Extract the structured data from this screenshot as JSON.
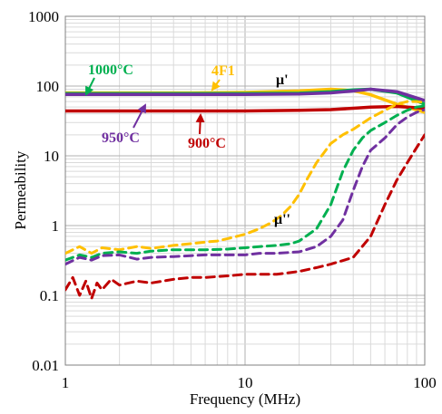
{
  "chart_data": {
    "type": "line",
    "xlabel": "Frequency (MHz)",
    "ylabel": "Permeability",
    "x_scale": "log",
    "y_scale": "log",
    "xlim": [
      1,
      100
    ],
    "ylim": [
      0.01,
      1000
    ],
    "grid": true,
    "x_ticks": [
      "1",
      "10",
      "100"
    ],
    "y_ticks": [
      "0.01",
      "0.1",
      "1",
      "10",
      "100",
      "1000"
    ],
    "colors": {
      "4F1": "#ffc000",
      "1000C": "#00b050",
      "950C": "#7030a0",
      "900C": "#c00000"
    },
    "series": [
      {
        "name": "4F1",
        "part": "μ'",
        "color_key": "4F1",
        "dash": false,
        "x": [
          1,
          5,
          10,
          20,
          30,
          40,
          50,
          70,
          100
        ],
        "y": [
          80,
          80,
          81,
          85,
          90,
          86,
          75,
          55,
          42
        ]
      },
      {
        "name": "1000°C",
        "part": "μ'",
        "color_key": "1000C",
        "dash": false,
        "x": [
          1,
          5,
          10,
          20,
          30,
          40,
          50,
          70,
          100
        ],
        "y": [
          78,
          78,
          78,
          79,
          83,
          88,
          90,
          80,
          55
        ]
      },
      {
        "name": "950°C",
        "part": "μ'",
        "color_key": "950C",
        "dash": false,
        "x": [
          1,
          5,
          10,
          20,
          30,
          40,
          50,
          70,
          100
        ],
        "y": [
          76,
          76,
          76,
          77,
          80,
          85,
          90,
          83,
          62
        ]
      },
      {
        "name": "900°C",
        "part": "μ'",
        "color_key": "900C",
        "dash": false,
        "x": [
          1,
          5,
          10,
          20,
          30,
          40,
          50,
          70,
          100
        ],
        "y": [
          44,
          44,
          44,
          45,
          46,
          48,
          50,
          51,
          48
        ]
      },
      {
        "name": "4F1",
        "part": "μ''",
        "color_key": "4F1",
        "dash": true,
        "x": [
          1,
          1.2,
          1.4,
          1.6,
          2,
          2.5,
          3,
          4,
          5,
          6,
          7,
          8,
          10,
          12,
          14,
          16,
          18,
          20,
          22,
          25,
          30,
          35,
          40,
          50,
          60,
          70,
          80,
          90,
          100
        ],
        "y": [
          0.4,
          0.5,
          0.4,
          0.48,
          0.45,
          0.5,
          0.47,
          0.52,
          0.55,
          0.58,
          0.6,
          0.65,
          0.75,
          0.9,
          1.1,
          1.4,
          1.9,
          2.8,
          4.5,
          8,
          15,
          20,
          24,
          35,
          45,
          55,
          60,
          60,
          58
        ]
      },
      {
        "name": "1000°C",
        "part": "μ''",
        "color_key": "1000C",
        "dash": true,
        "x": [
          1,
          1.2,
          1.4,
          1.6,
          2,
          2.5,
          3,
          4,
          5,
          6,
          8,
          10,
          12,
          15,
          18,
          20,
          25,
          30,
          35,
          40,
          45,
          50,
          60,
          70,
          80,
          90,
          100
        ],
        "y": [
          0.32,
          0.38,
          0.35,
          0.4,
          0.42,
          0.4,
          0.43,
          0.45,
          0.45,
          0.45,
          0.46,
          0.48,
          0.5,
          0.52,
          0.55,
          0.6,
          0.9,
          2.0,
          6,
          12,
          18,
          23,
          30,
          38,
          45,
          50,
          52
        ]
      },
      {
        "name": "950°C",
        "part": "μ''",
        "color_key": "950C",
        "dash": true,
        "x": [
          1,
          1.2,
          1.4,
          1.6,
          2,
          2.5,
          3,
          4,
          5,
          6,
          8,
          10,
          12,
          15,
          20,
          25,
          30,
          35,
          40,
          45,
          50,
          60,
          70,
          80,
          90,
          100
        ],
        "y": [
          0.28,
          0.35,
          0.32,
          0.37,
          0.38,
          0.33,
          0.35,
          0.36,
          0.37,
          0.38,
          0.38,
          0.38,
          0.4,
          0.4,
          0.42,
          0.5,
          0.7,
          1.2,
          3.2,
          7,
          12,
          18,
          28,
          36,
          42,
          46
        ]
      },
      {
        "name": "900°C",
        "part": "μ''",
        "color_key": "900C",
        "dash": true,
        "x": [
          1,
          1.1,
          1.2,
          1.3,
          1.4,
          1.5,
          1.6,
          1.8,
          2,
          2.5,
          3,
          4,
          5,
          6,
          8,
          10,
          12,
          15,
          20,
          25,
          30,
          40,
          50,
          60,
          70,
          80,
          90,
          100
        ],
        "y": [
          0.12,
          0.18,
          0.1,
          0.16,
          0.09,
          0.15,
          0.12,
          0.17,
          0.14,
          0.16,
          0.15,
          0.17,
          0.18,
          0.18,
          0.19,
          0.2,
          0.2,
          0.2,
          0.22,
          0.25,
          0.28,
          0.35,
          0.7,
          2.0,
          4.5,
          8,
          13,
          20
        ]
      }
    ],
    "annotations": [
      {
        "text": "4F1",
        "color_key": "4F1"
      },
      {
        "text": "1000°C",
        "color_key": "1000C"
      },
      {
        "text": "950°C",
        "color_key": "950C"
      },
      {
        "text": "900°C",
        "color_key": "900C"
      },
      {
        "text": "μ'",
        "color_key": null
      },
      {
        "text": "μ''",
        "color_key": null
      }
    ]
  }
}
